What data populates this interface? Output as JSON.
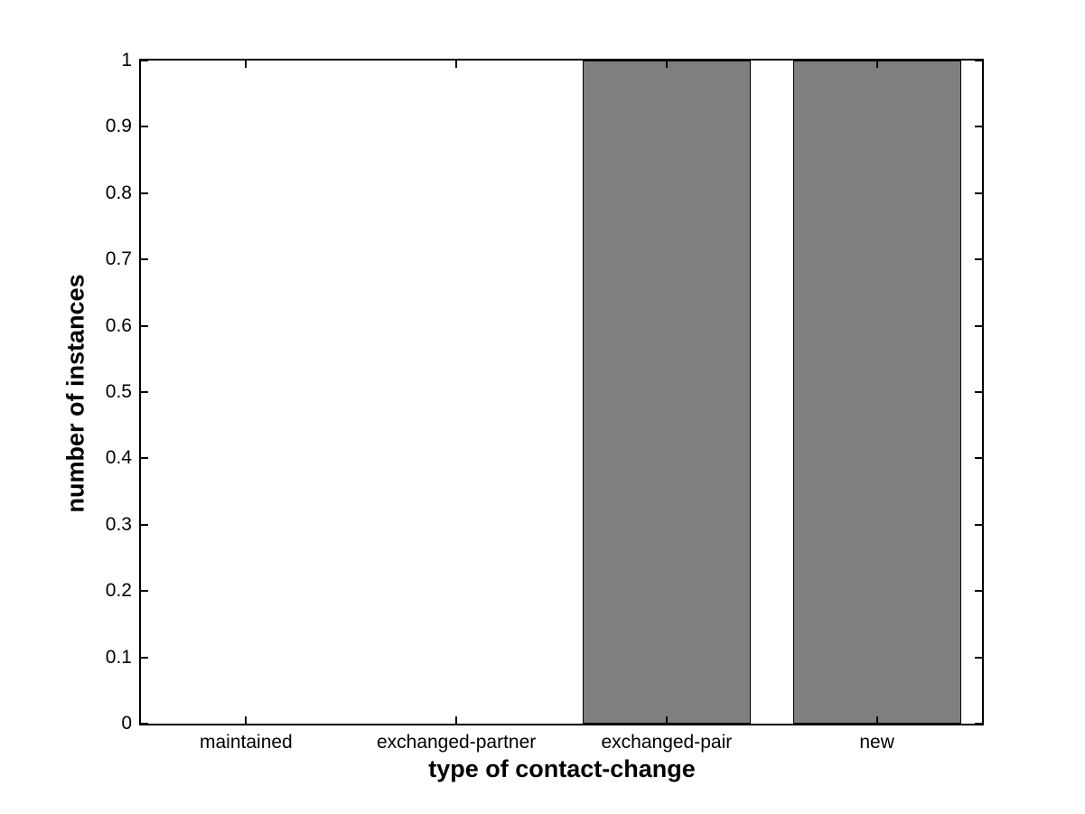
{
  "chart_data": {
    "type": "bar",
    "title": "",
    "categories": [
      "maintained",
      "exchanged-partner",
      "exchanged-pair",
      "new"
    ],
    "values": [
      0,
      0,
      1,
      1
    ],
    "xlabel": "type of contact-change",
    "ylabel": "number of instances",
    "ylim": [
      0,
      1
    ],
    "yticks": [
      0,
      0.1,
      0.2,
      0.3,
      0.4,
      0.5,
      0.6,
      0.7,
      0.8,
      0.9,
      1
    ],
    "ytick_labels": [
      "0",
      "0.1",
      "0.2",
      "0.3",
      "0.4",
      "0.5",
      "0.6",
      "0.7",
      "0.8",
      "0.9",
      "1"
    ],
    "bar_color": "#7f7f7f",
    "bar_edge_color": "#000000",
    "axis_color": "#000000",
    "background_color": "#ffffff",
    "bar_width_fraction": 0.8,
    "grid": false,
    "legend": null
  }
}
